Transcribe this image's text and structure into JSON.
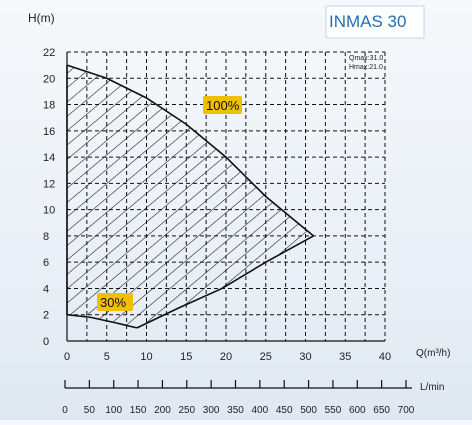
{
  "product_label": "INMAS 30",
  "annotations": {
    "qmax": "Qmax:31.0",
    "hmax": "Hmax:21.0",
    "label_100": "100%",
    "label_30": "30%"
  },
  "colors": {
    "title_blue": "#1f6fb5",
    "tag_yellow": "#f0c000",
    "grid": "#111111",
    "curve": "#111111",
    "background": "#eef2f7"
  },
  "chart_data": {
    "type": "line",
    "title": "",
    "ylabel": "H(m)",
    "xlabel": "Q(m³/h)",
    "secondary_xlabel": "L/min",
    "xlim": [
      0,
      40
    ],
    "ylim": [
      0,
      22
    ],
    "x_ticks": [
      "0",
      "5",
      "10",
      "15",
      "20",
      "25",
      "30",
      "35",
      "40"
    ],
    "y_ticks": [
      "0",
      "2",
      "4",
      "6",
      "8",
      "10",
      "12",
      "14",
      "16",
      "18",
      "20",
      "22"
    ],
    "secondary_x_ticks": [
      "0",
      "50",
      "100",
      "150",
      "200",
      "250",
      "300",
      "350",
      "400",
      "450",
      "500",
      "550",
      "600",
      "650",
      "700"
    ],
    "grid": true,
    "hatched_region": true,
    "series": [
      {
        "name": "100%",
        "x": [
          0,
          5,
          10,
          15,
          20,
          25,
          28,
          31
        ],
        "y": [
          21,
          20,
          18.5,
          16.5,
          14,
          11,
          9.5,
          8
        ]
      },
      {
        "name": "30%",
        "x": [
          0,
          3,
          6,
          8.8
        ],
        "y": [
          2,
          1.8,
          1.4,
          1
        ]
      },
      {
        "name": "",
        "x": [
          8.8,
          14,
          19.5,
          25,
          31
        ],
        "y": [
          1,
          2.5,
          4,
          6,
          8
        ]
      }
    ]
  }
}
